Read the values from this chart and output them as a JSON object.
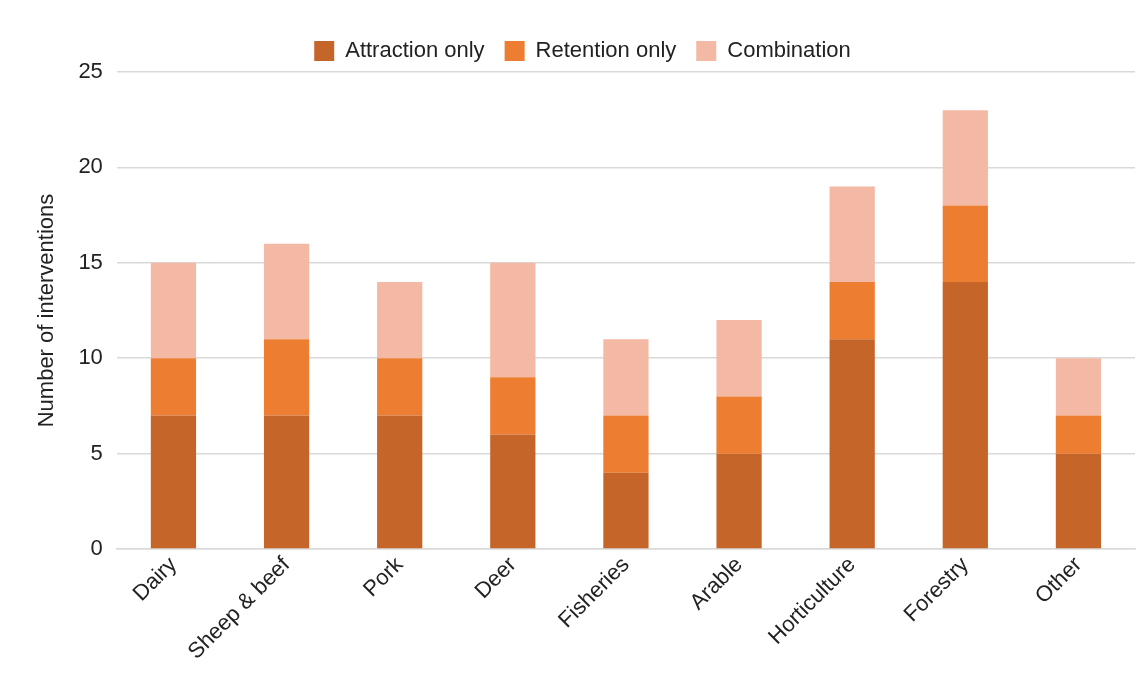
{
  "chart_data": {
    "type": "bar",
    "stacked": true,
    "ylabel": "Number of interventions",
    "categories": [
      "Dairy",
      "Sheep & beef",
      "Pork",
      "Deer",
      "Fisheries",
      "Arable",
      "Horticulture",
      "Forestry",
      "Other"
    ],
    "series": [
      {
        "name": "Attraction only",
        "color": "#c5652a",
        "values": [
          7,
          7,
          7,
          6,
          4,
          5,
          11,
          14,
          5
        ]
      },
      {
        "name": "Retention only",
        "color": "#ed7d31",
        "values": [
          3,
          4,
          3,
          3,
          3,
          3,
          3,
          4,
          2
        ]
      },
      {
        "name": "Combination",
        "color": "#f4b9a4",
        "values": [
          5,
          5,
          4,
          6,
          4,
          4,
          5,
          5,
          3
        ]
      }
    ],
    "ylim": [
      0,
      25
    ],
    "yticks": [
      0,
      5,
      10,
      15,
      20,
      25
    ],
    "grid": "y",
    "legend": "top"
  }
}
